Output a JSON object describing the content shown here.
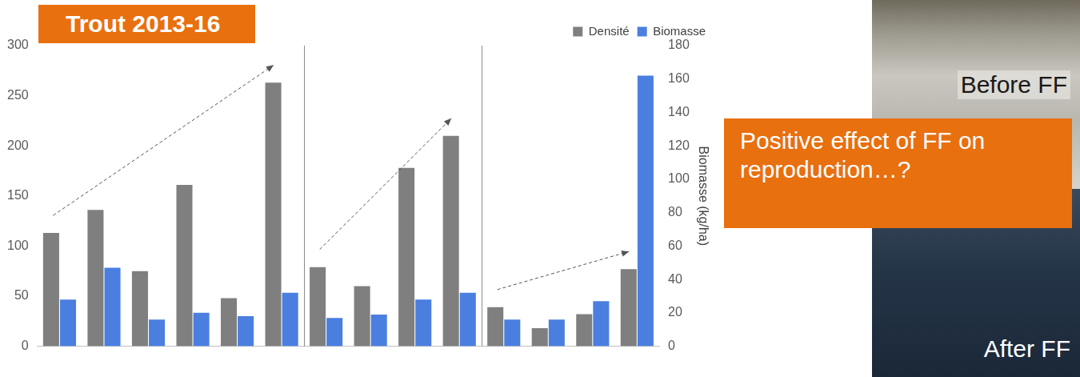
{
  "chart_data": {
    "type": "bar",
    "title": "Trout 2013-16",
    "categories": [
      null,
      null,
      null,
      null,
      null,
      null,
      null,
      null,
      null,
      null,
      null,
      null,
      null,
      null
    ],
    "series": [
      {
        "name": "Densité",
        "color": "#7f7f7f",
        "values": [
          113,
          136,
          75,
          161,
          48,
          263,
          79,
          60,
          178,
          210,
          39,
          18,
          32,
          77
        ]
      },
      {
        "name": "Biomasse",
        "color": "#4a7fe0",
        "axis": "y2",
        "values": [
          28,
          47,
          16,
          20,
          18,
          32,
          17,
          19,
          28,
          32,
          16,
          16,
          27,
          162
        ]
      }
    ],
    "ylim": [
      0,
      300
    ],
    "yticks": [
      0,
      50,
      100,
      150,
      200,
      250,
      300
    ],
    "y2lim": [
      0,
      180
    ],
    "y2ticks": [
      0,
      20,
      40,
      60,
      80,
      100,
      120,
      140,
      160,
      180
    ],
    "y2label": "Biomasse (kg/ha)",
    "legend": "upper right",
    "grid": false,
    "annotations": [
      "Positive effect of FF on reproduction…?",
      "Before FF",
      "After FF"
    ]
  }
}
